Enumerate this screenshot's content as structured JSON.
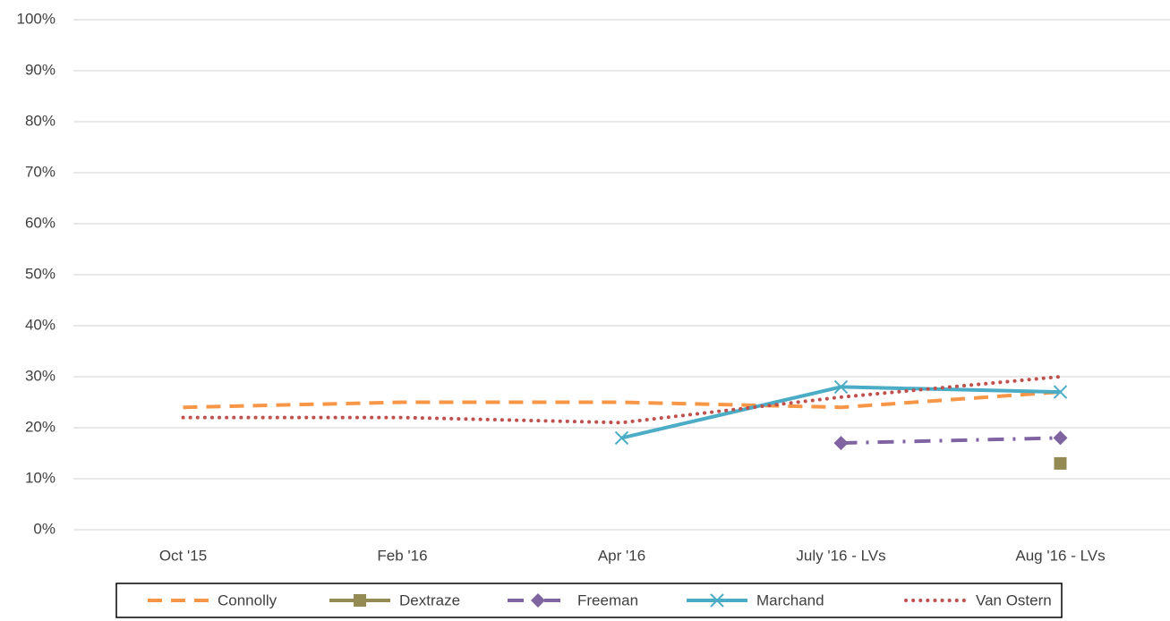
{
  "chart_data": {
    "type": "line",
    "categories": [
      "Oct '15",
      "Feb '16",
      "Apr '16",
      "July '16 - LVs",
      "Aug '16 - LVs"
    ],
    "series": [
      {
        "name": "Connolly",
        "color": "#F79646",
        "dash": "dashed",
        "marker": "none",
        "values": [
          24,
          25,
          25,
          24,
          27
        ]
      },
      {
        "name": "Dextraze",
        "color": "#948A54",
        "dash": "solid",
        "marker": "square",
        "values": [
          null,
          null,
          null,
          null,
          13
        ]
      },
      {
        "name": "Freeman",
        "color": "#8064A2",
        "dash": "dashdot",
        "marker": "diamond",
        "values": [
          null,
          null,
          null,
          17,
          18
        ]
      },
      {
        "name": "Marchand",
        "color": "#4BACC6",
        "dash": "solid",
        "marker": "x",
        "values": [
          null,
          null,
          18,
          28,
          27
        ]
      },
      {
        "name": "Van Ostern",
        "color": "#C0504D",
        "dash": "dotted",
        "marker": "none",
        "values": [
          22,
          22,
          21,
          26,
          30
        ]
      }
    ],
    "ylim": [
      0,
      100
    ],
    "yticks": [
      {
        "value": 0,
        "label": "0%"
      },
      {
        "value": 10,
        "label": "10%"
      },
      {
        "value": 20,
        "label": "20%"
      },
      {
        "value": 30,
        "label": "30%"
      },
      {
        "value": 40,
        "label": "40%"
      },
      {
        "value": 50,
        "label": "50%"
      },
      {
        "value": 60,
        "label": "60%"
      },
      {
        "value": 70,
        "label": "70%"
      },
      {
        "value": 80,
        "label": "80%"
      },
      {
        "value": 90,
        "label": "90%"
      },
      {
        "value": 100,
        "label": "100%"
      }
    ],
    "grid": true,
    "legend": "bottom"
  }
}
